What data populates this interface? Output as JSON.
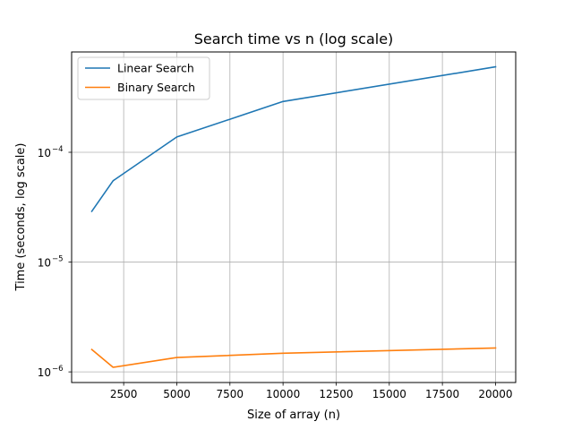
{
  "chart_data": {
    "type": "line",
    "title": "Search time vs n (log scale)",
    "xlabel": "Size of array (n)",
    "ylabel": "Time (seconds, log scale)",
    "x": [
      1000,
      2000,
      5000,
      10000,
      20000
    ],
    "series": [
      {
        "name": "Linear Search",
        "color": "#1f77b4",
        "values": [
          2.9e-05,
          5.5e-05,
          0.000138,
          0.00029,
          0.0006
        ]
      },
      {
        "name": "Binary Search",
        "color": "#ff7f0e",
        "values": [
          1.6e-06,
          1.1e-06,
          1.35e-06,
          1.48e-06,
          1.65e-06
        ]
      }
    ],
    "xticks": [
      2500,
      5000,
      7500,
      10000,
      12500,
      15000,
      17500,
      20000
    ],
    "yticks": [
      {
        "value": 1e-06,
        "base": "10",
        "exp": "−6"
      },
      {
        "value": 1e-05,
        "base": "10",
        "exp": "−5"
      },
      {
        "value": 0.0001,
        "base": "10",
        "exp": "−4"
      }
    ],
    "xlim": [
      50,
      20950
    ],
    "ylim": [
      8e-07,
      0.00082
    ],
    "yscale": "log",
    "grid": true,
    "legend": "top-left"
  }
}
